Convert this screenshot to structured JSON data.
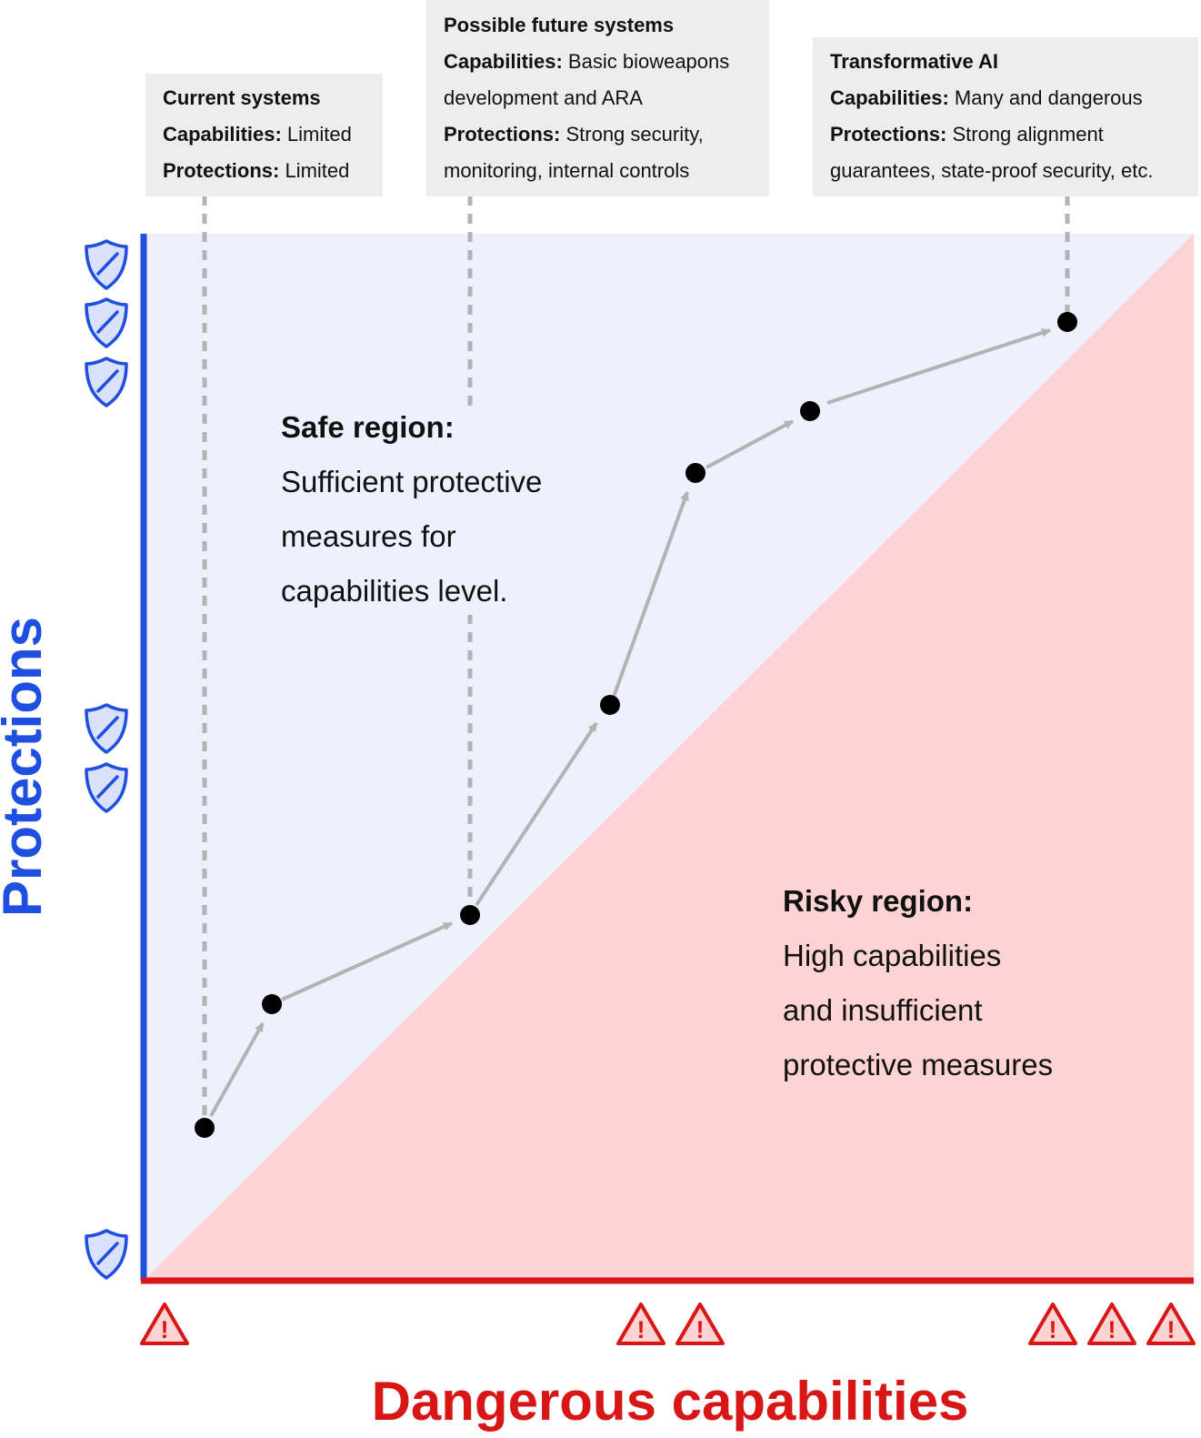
{
  "axes": {
    "y_label": "Protections",
    "x_label": "Dangerous capabilities"
  },
  "colors": {
    "safe_fill": "#eef1fd",
    "risky_fill": "#fdd3d3",
    "protections_axis": "#1f4fe0",
    "capabilities_axis": "#d81616",
    "path_arrow": "#b3b3b3",
    "dashed_leader": "#b3b3b3",
    "point": "#000000",
    "annotation_box": "#ededed"
  },
  "annotations": {
    "current": {
      "title": "Current systems",
      "cap_label": "Capabilities:",
      "cap_value": " Limited",
      "prot_label": "Protections:",
      "prot_value": " Limited"
    },
    "future": {
      "title": "Possible future systems",
      "cap_label": "Capabilities:",
      "cap_value_1": " Basic bioweapons",
      "cap_value_2": "development and ARA",
      "prot_label": "Protections:",
      "prot_value_1": " Strong security,",
      "prot_value_2": "monitoring, internal controls"
    },
    "transformative": {
      "title": "Transformative AI",
      "cap_label": "Capabilities:",
      "cap_value": " Many and dangerous",
      "prot_label": "Protections:",
      "prot_value_1": " Strong alignment",
      "prot_value_2": "guarantees, state-proof security, etc."
    }
  },
  "regions": {
    "safe": {
      "title": "Safe region:",
      "line_1": "Sufficient protective",
      "line_2": "measures for",
      "line_3": "capabilities level."
    },
    "risky": {
      "title": "Risky region:",
      "line_1": "High capabilities",
      "line_2": "and insufficient",
      "line_3": "protective measures"
    }
  },
  "icons": {
    "protections_axis": "shield-icon",
    "capabilities_axis": "warning-icon"
  }
}
